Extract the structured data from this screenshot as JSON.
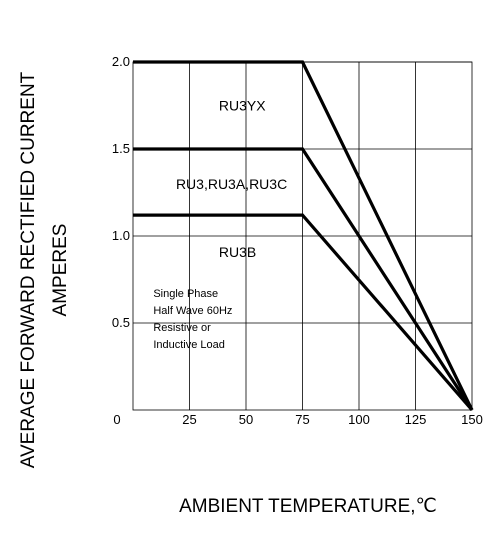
{
  "chart_data": {
    "type": "line",
    "xlabel": "AMBIENT TEMPERATURE,℃",
    "ylabel_line1": "AVERAGE FORWARD RECTIFIED CURRENT",
    "ylabel_line2": "AMPERES",
    "xlim": [
      0,
      150
    ],
    "ylim": [
      0,
      2.0
    ],
    "x_ticks": [
      0,
      25,
      50,
      75,
      100,
      125,
      150
    ],
    "x_tick_labels": [
      "0",
      "25",
      "50",
      "75",
      "100",
      "125",
      "150"
    ],
    "y_ticks": [
      0.5,
      1.0,
      1.5,
      2.0
    ],
    "y_tick_labels": [
      "0.5",
      "1.0",
      "1.5",
      "2.0"
    ],
    "grid": true,
    "series": [
      {
        "name": "RU3YX",
        "x": [
          0,
          75,
          150
        ],
        "y": [
          2.0,
          2.0,
          0
        ]
      },
      {
        "name": "RU3,RU3A,RU3C",
        "x": [
          0,
          75,
          150
        ],
        "y": [
          1.5,
          1.5,
          0
        ]
      },
      {
        "name": "RU3B",
        "x": [
          0,
          75,
          150
        ],
        "y": [
          1.12,
          1.12,
          0
        ]
      }
    ],
    "series_labels": [
      {
        "text": "RU3YX",
        "x": 38,
        "y": 1.72
      },
      {
        "text": "RU3,RU3A,RU3C",
        "x": 19,
        "y": 1.27
      },
      {
        "text": "RU3B",
        "x": 38,
        "y": 0.88
      }
    ],
    "annotation": {
      "lines": [
        "Single Phase",
        "Half Wave 60Hz",
        "Resistive or",
        "Inductive Load"
      ],
      "x": 9,
      "y": 0.65
    }
  }
}
